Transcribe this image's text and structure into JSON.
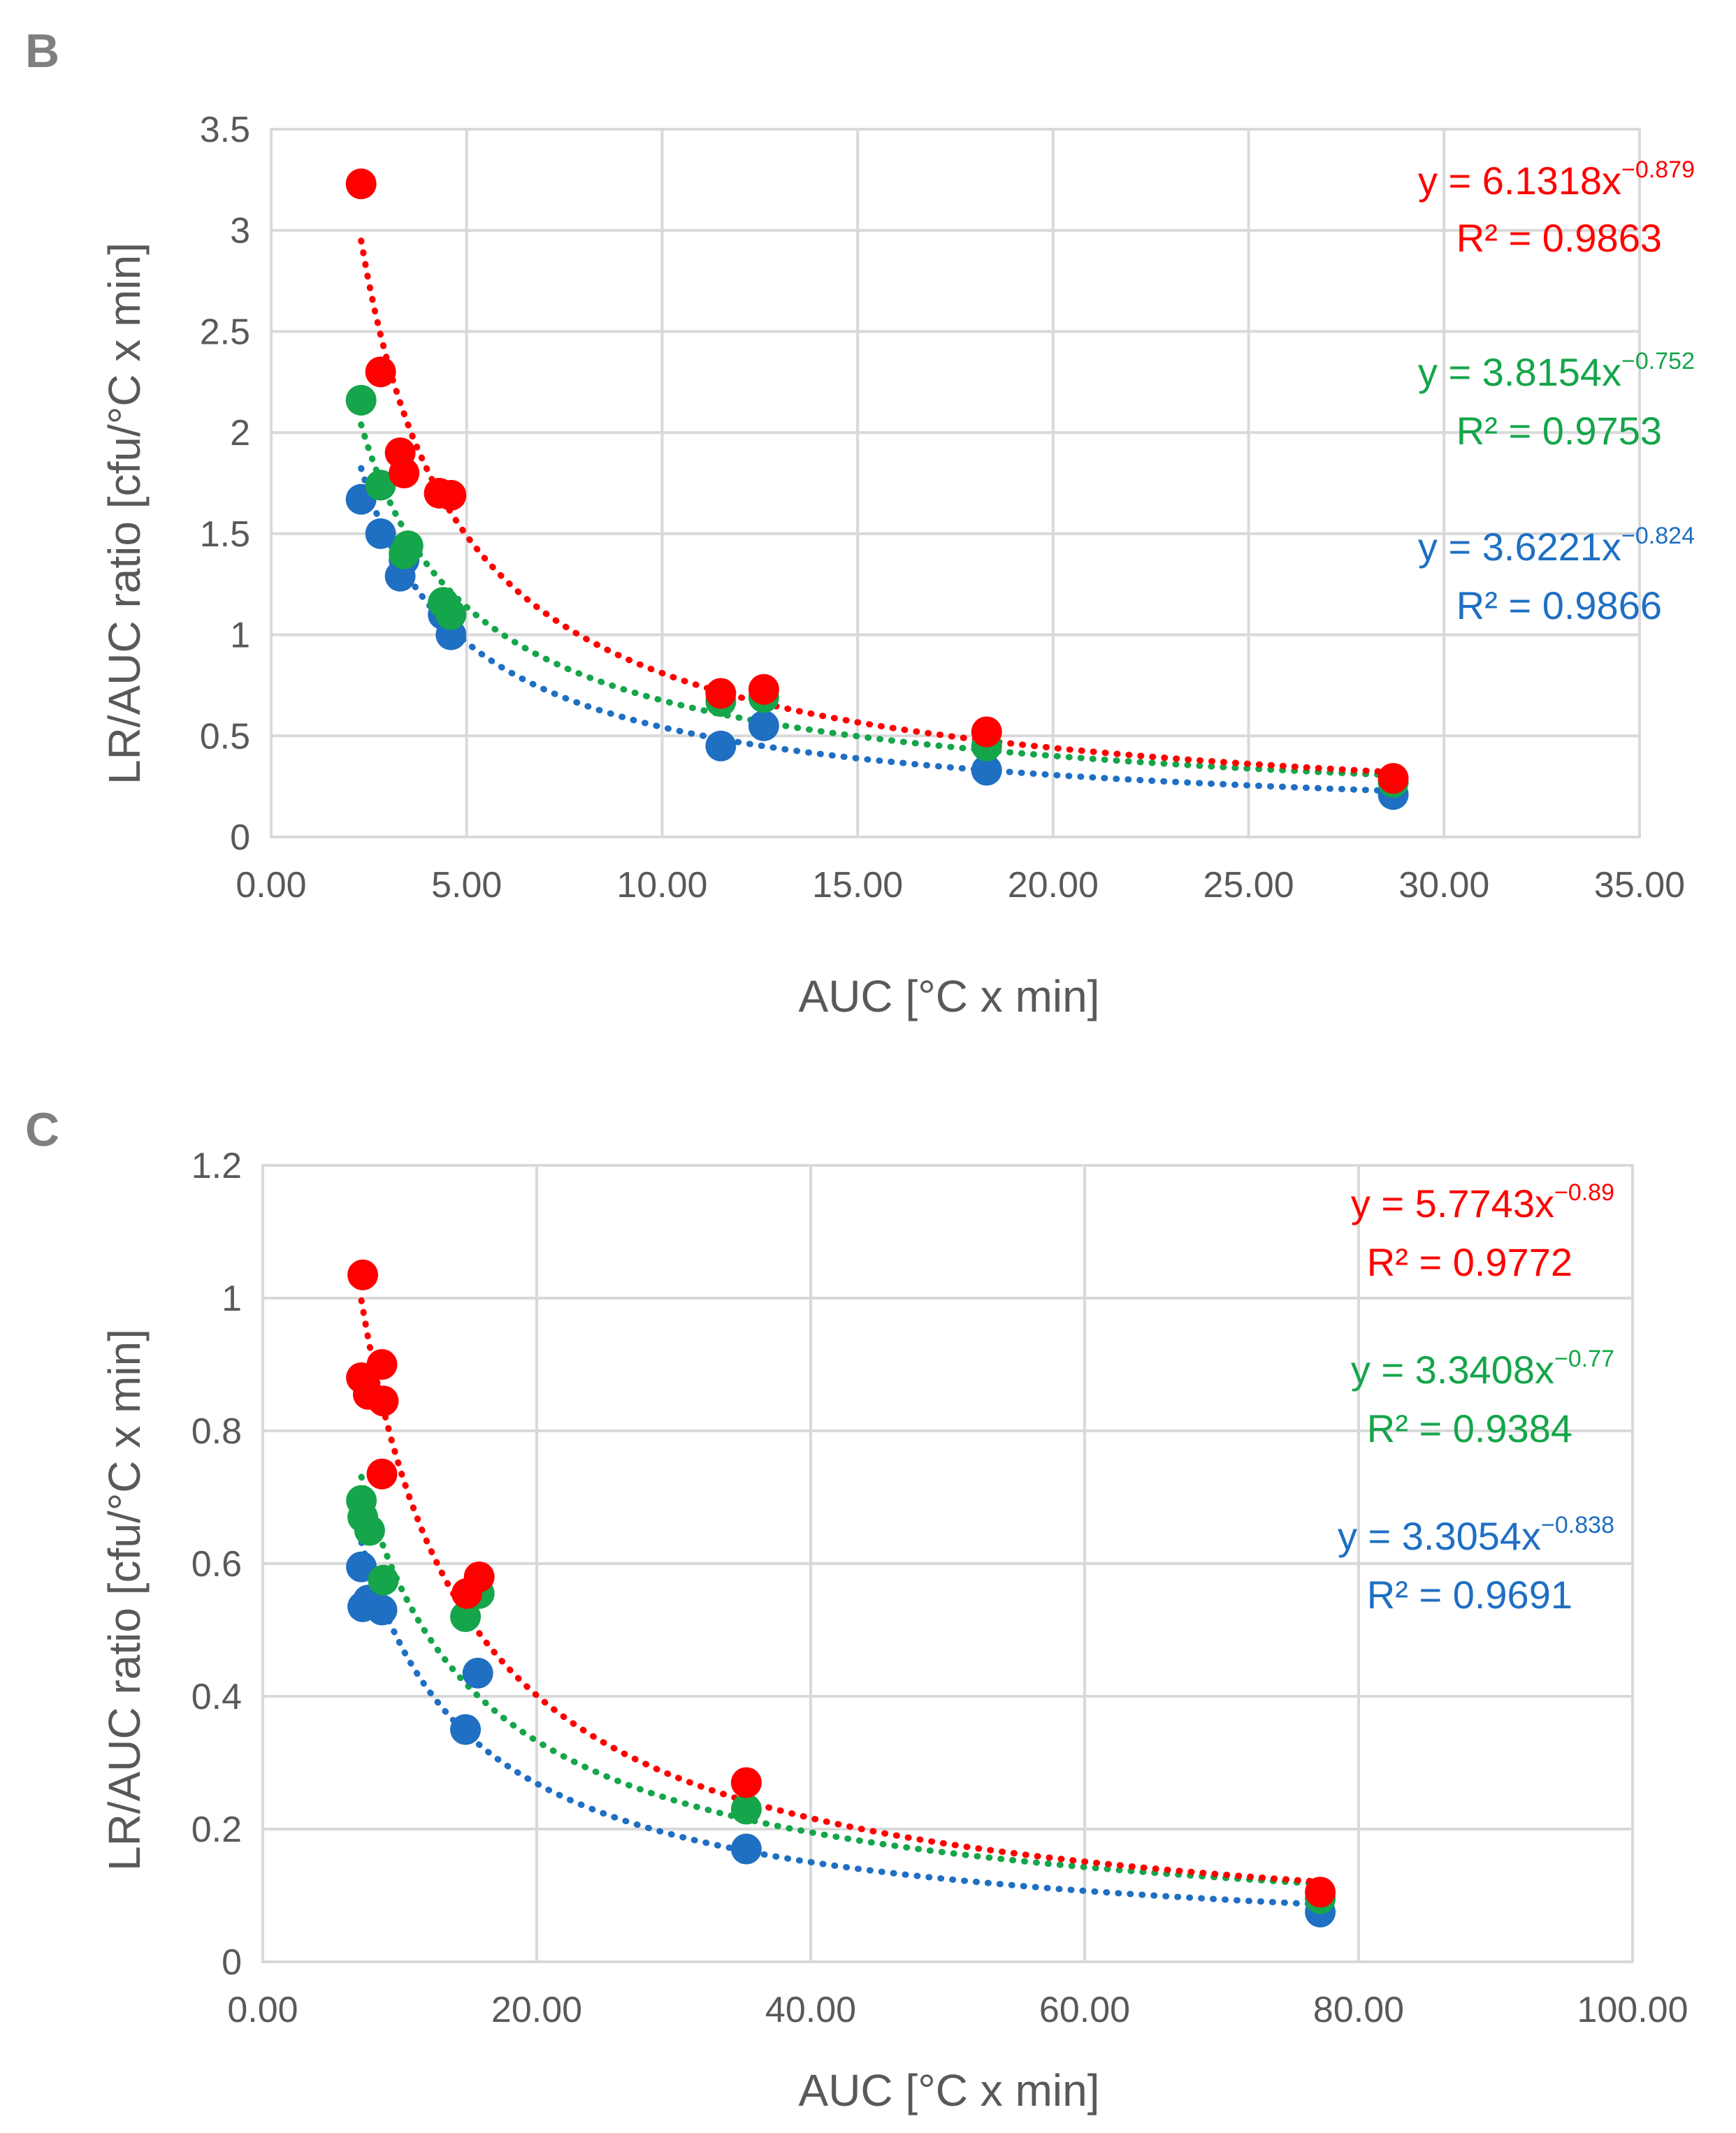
{
  "chart_data": [
    {
      "type": "scatter",
      "panel_label": "B",
      "xlabel": "AUC [°C x min]",
      "ylabel": "LR/AUC ratio [cfu/°C x min]",
      "xlim": [
        0,
        35
      ],
      "ylim": [
        0,
        3.5
      ],
      "x_ticks": [
        0,
        5,
        10,
        15,
        20,
        25,
        30,
        35
      ],
      "x_tick_labels": [
        "0.00",
        "5.00",
        "10.00",
        "15.00",
        "20.00",
        "25.00",
        "30.00",
        "35.00"
      ],
      "y_ticks": [
        0,
        0.5,
        1,
        1.5,
        2,
        2.5,
        3,
        3.5
      ],
      "y_tick_labels": [
        "0",
        "0.5",
        "1",
        "1.5",
        "2",
        "2.5",
        "3",
        "3.5"
      ],
      "grid": true,
      "series": [
        {
          "name": "blue",
          "color": "#1f6fc3",
          "x": [
            2.3,
            2.8,
            3.3,
            3.4,
            4.4,
            4.6,
            11.5,
            12.6,
            18.3,
            28.7
          ],
          "y": [
            1.67,
            1.5,
            1.29,
            1.37,
            1.1,
            1.0,
            0.45,
            0.55,
            0.33,
            0.21
          ],
          "trendline": {
            "a": 3.6221,
            "b": -0.824
          },
          "eq_label": "y = 3.6221x",
          "eq_exp": "−0.824",
          "r2_label": "R² = 0.9866"
        },
        {
          "name": "green",
          "color": "#15a54a",
          "x": [
            2.3,
            2.8,
            3.4,
            3.5,
            4.4,
            4.6,
            11.5,
            12.6,
            18.3,
            28.7
          ],
          "y": [
            2.16,
            1.74,
            1.4,
            1.44,
            1.16,
            1.1,
            0.67,
            0.69,
            0.45,
            0.27
          ],
          "trendline": {
            "a": 3.8154,
            "b": -0.752
          },
          "eq_label": "y = 3.8154x",
          "eq_exp": "−0.752",
          "r2_label": "R² = 0.9753"
        },
        {
          "name": "red",
          "color": "#ff0000",
          "x": [
            2.3,
            2.8,
            3.3,
            3.4,
            4.3,
            4.6,
            11.5,
            12.6,
            18.3,
            28.7
          ],
          "y": [
            3.23,
            2.3,
            1.9,
            1.8,
            1.7,
            1.69,
            0.71,
            0.73,
            0.52,
            0.29
          ],
          "trendline": {
            "a": 6.1318,
            "b": -0.879
          },
          "eq_label": "y = 6.1318x",
          "eq_exp": "−0.879",
          "r2_label": "R² = 0.9863"
        }
      ]
    },
    {
      "type": "scatter",
      "panel_label": "C",
      "xlabel": "AUC [°C x min]",
      "ylabel": "LR/AUC ratio [cfu/°C x min]",
      "xlim": [
        0,
        100
      ],
      "ylim": [
        0,
        1.2
      ],
      "x_ticks": [
        0,
        20,
        40,
        60,
        80,
        100
      ],
      "x_tick_labels": [
        "0.00",
        "20.00",
        "40.00",
        "60.00",
        "80.00",
        "100.00"
      ],
      "y_ticks": [
        0,
        0.2,
        0.4,
        0.6,
        0.8,
        1,
        1.2
      ],
      "y_tick_labels": [
        "0",
        "0.2",
        "0.4",
        "0.6",
        "0.8",
        "1",
        "1.2"
      ],
      "grid": true,
      "series": [
        {
          "name": "blue",
          "color": "#1f6fc3",
          "x": [
            7.2,
            7.3,
            7.7,
            8.7,
            14.8,
            15.7,
            35.3,
            77.2
          ],
          "y": [
            0.595,
            0.535,
            0.545,
            0.53,
            0.35,
            0.435,
            0.17,
            0.075
          ],
          "trendline": {
            "a": 3.3054,
            "b": -0.838
          },
          "eq_label": "y = 3.3054x",
          "eq_exp": "−0.838",
          "r2_label": "R² = 0.9691"
        },
        {
          "name": "green",
          "color": "#15a54a",
          "x": [
            7.2,
            7.3,
            7.8,
            8.8,
            14.8,
            15.8,
            35.3,
            77.2
          ],
          "y": [
            0.695,
            0.67,
            0.65,
            0.575,
            0.52,
            0.555,
            0.23,
            0.095
          ],
          "trendline": {
            "a": 3.3408,
            "b": -0.77
          },
          "eq_label": "y = 3.3408x",
          "eq_exp": "−0.77",
          "r2_label": "R² = 0.9384"
        },
        {
          "name": "red",
          "color": "#ff0000",
          "x": [
            7.3,
            7.2,
            7.7,
            8.7,
            8.8,
            8.7,
            14.9,
            15.8,
            35.3,
            77.2
          ],
          "y": [
            1.035,
            0.88,
            0.855,
            0.9,
            0.845,
            0.735,
            0.555,
            0.58,
            0.27,
            0.105
          ],
          "trendline": {
            "a": 5.7743,
            "b": -0.89
          },
          "eq_label": "y = 5.7743x",
          "eq_exp": "−0.89",
          "r2_label": "R² = 0.9772"
        }
      ]
    }
  ]
}
